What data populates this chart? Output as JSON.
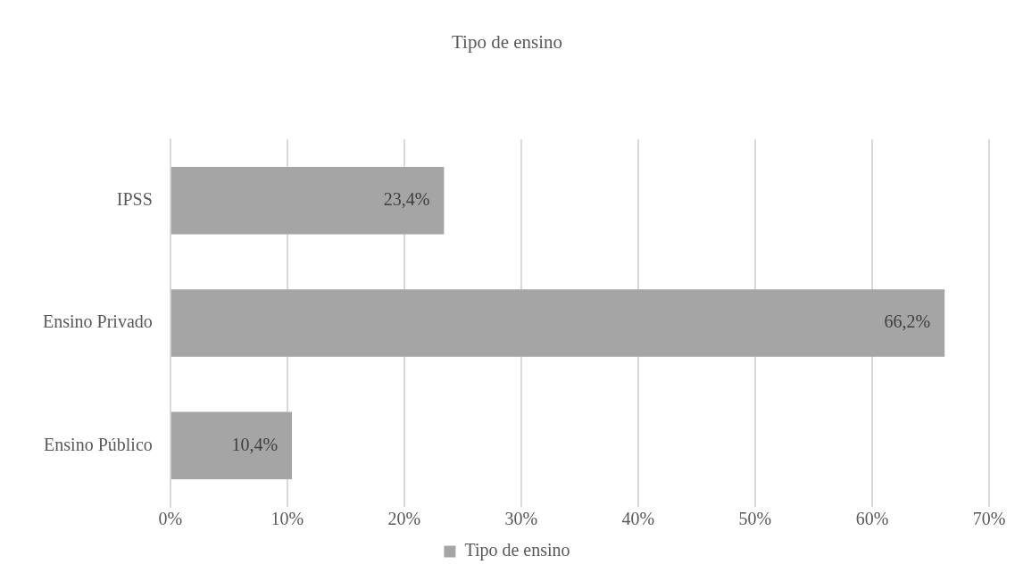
{
  "chart_data": {
    "type": "bar",
    "title": "Tipo de ensino",
    "orientation": "horizontal",
    "categories": [
      "IPSS",
      "Ensino Privado",
      "Ensino Público"
    ],
    "series": [
      {
        "name": "Tipo de ensino",
        "color": "#a5a5a5",
        "values": [
          23.4,
          66.2,
          10.4
        ],
        "value_labels": [
          "23,4%",
          "66,2%",
          "10,4%"
        ]
      }
    ],
    "xlim": [
      0,
      70
    ],
    "xticks": [
      {
        "value": 0,
        "label": "0%"
      },
      {
        "value": 10,
        "label": "10%"
      },
      {
        "value": 20,
        "label": "20%"
      },
      {
        "value": 30,
        "label": "30%"
      },
      {
        "value": 40,
        "label": "40%"
      },
      {
        "value": 50,
        "label": "50%"
      },
      {
        "value": 60,
        "label": "60%"
      },
      {
        "value": 70,
        "label": "70%"
      }
    ],
    "grid": "x",
    "legend": "bottom"
  }
}
